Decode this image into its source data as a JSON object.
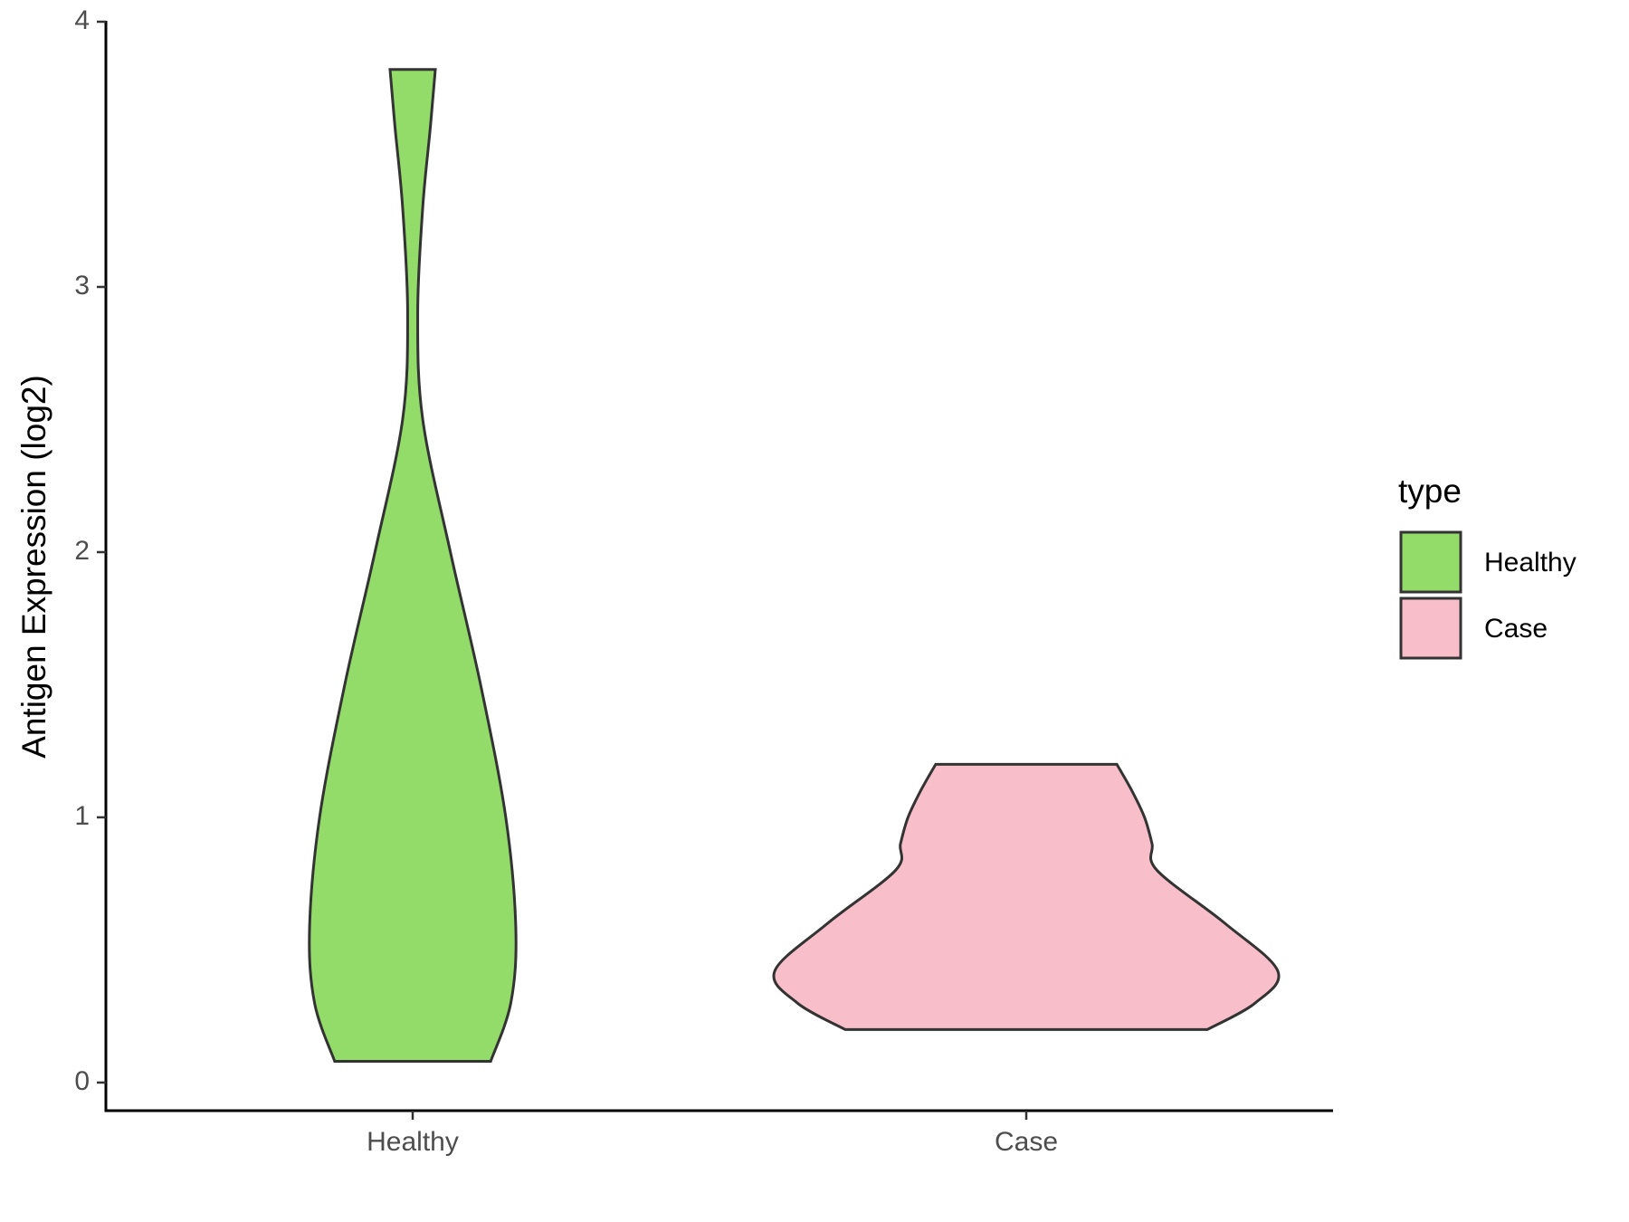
{
  "chart_data": {
    "type": "violin",
    "y_label": "Antigen Expression (log2)",
    "categories": [
      "Healthy",
      "Case"
    ],
    "legend_title": "type",
    "legend_position": "right",
    "ylim": [
      -0.106,
      4
    ],
    "yticks": [
      0,
      1,
      2,
      3,
      4
    ],
    "series": [
      {
        "name": "Healthy",
        "color": "#93dc6a",
        "y": [
          0.08,
          0.3,
          0.58,
          1.0,
          1.5,
          2.0,
          2.5,
          2.9,
          3.3,
          3.6,
          3.82
        ],
        "width": [
          0.31,
          0.39,
          0.41,
          0.37,
          0.27,
          0.15,
          0.04,
          0.02,
          0.04,
          0.07,
          0.09
        ]
      },
      {
        "name": "Case",
        "color": "#f8bfca",
        "y": [
          0.2,
          0.3,
          0.42,
          0.6,
          0.8,
          0.9,
          1.0,
          1.1,
          1.2
        ],
        "width": [
          0.72,
          0.91,
          1.0,
          0.79,
          0.52,
          0.5,
          0.47,
          0.42,
          0.36
        ]
      }
    ]
  }
}
